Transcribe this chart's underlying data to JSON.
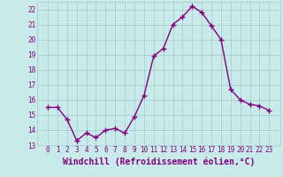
{
  "x": [
    0,
    1,
    2,
    3,
    4,
    5,
    6,
    7,
    8,
    9,
    10,
    11,
    12,
    13,
    14,
    15,
    16,
    17,
    18,
    19,
    20,
    21,
    22,
    23
  ],
  "y": [
    15.5,
    15.5,
    14.7,
    13.3,
    13.8,
    13.5,
    14.0,
    14.1,
    13.8,
    14.9,
    16.3,
    18.9,
    19.4,
    21.0,
    21.5,
    22.2,
    21.8,
    20.9,
    20.0,
    16.7,
    16.0,
    15.7,
    15.6,
    15.3
  ],
  "line_color": "#800080",
  "marker": "+",
  "marker_size": 4,
  "bg_color": "#c8eaea",
  "grid_color": "#a8c8c8",
  "xlabel": "Windchill (Refroidissement éolien,°C)",
  "xlabel_fontsize": 7,
  "ylim": [
    13,
    22.5
  ],
  "yticks": [
    13,
    14,
    15,
    16,
    17,
    18,
    19,
    20,
    21,
    22
  ],
  "xticks": [
    0,
    1,
    2,
    3,
    4,
    5,
    6,
    7,
    8,
    9,
    10,
    11,
    12,
    13,
    14,
    15,
    16,
    17,
    18,
    19,
    20,
    21,
    22,
    23
  ],
  "tick_fontsize": 5.5,
  "line_width": 1.0
}
